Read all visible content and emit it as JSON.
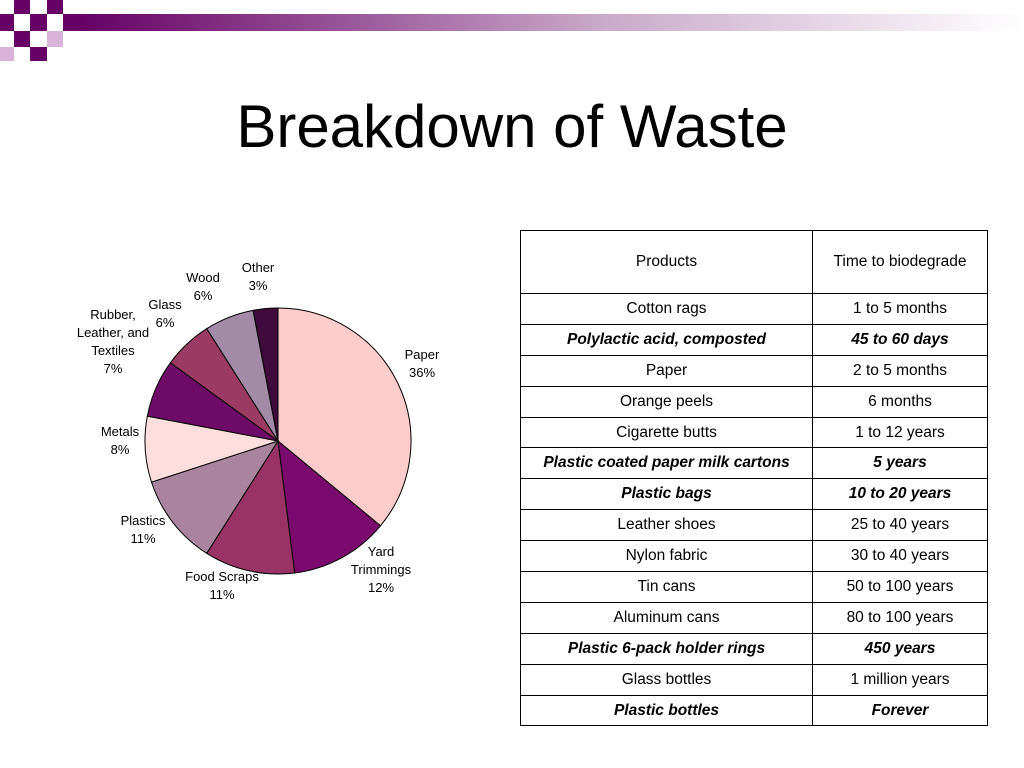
{
  "slide": {
    "title": "Breakdown of Waste"
  },
  "chart_data": {
    "type": "pie",
    "title": "",
    "slices": [
      {
        "label_lines": [
          "Paper",
          "36%"
        ],
        "value": 36,
        "color": "#ffcccc"
      },
      {
        "label_lines": [
          "Yard",
          "Trimmings",
          "12%"
        ],
        "value": 12,
        "color": "#7a0a6e"
      },
      {
        "label_lines": [
          "Food Scraps",
          "11%"
        ],
        "value": 11,
        "color": "#993366"
      },
      {
        "label_lines": [
          "Plastics",
          "11%"
        ],
        "value": 11,
        "color": "#a9849e"
      },
      {
        "label_lines": [
          "Metals",
          "8%"
        ],
        "value": 8,
        "color": "#ffdede"
      },
      {
        "label_lines": [
          "Rubber,",
          "Leather, and",
          "Textiles",
          "7%"
        ],
        "value": 7,
        "color": "#6e0a68"
      },
      {
        "label_lines": [
          "Glass",
          "6%"
        ],
        "value": 6,
        "color": "#9b3a62"
      },
      {
        "label_lines": [
          "Wood",
          "6%"
        ],
        "value": 6,
        "color": "#a38aa6"
      },
      {
        "label_lines": [
          "Other",
          "3%"
        ],
        "value": 3,
        "color": "#3f0a3c"
      }
    ]
  },
  "table": {
    "headers": [
      "Products",
      "Time to biodegrade"
    ],
    "rows": [
      {
        "product": "Cotton rags",
        "time": "1 to 5 months",
        "emphasis": false
      },
      {
        "product": "Polylactic acid, composted",
        "time": "45 to 60 days",
        "emphasis": true
      },
      {
        "product": "Paper",
        "time": "2 to 5 months",
        "emphasis": false
      },
      {
        "product": "Orange peels",
        "time": "6 months",
        "emphasis": false
      },
      {
        "product": "Cigarette butts",
        "time": "1 to 12 years",
        "emphasis": false
      },
      {
        "product": "Plastic coated paper milk cartons",
        "time": "5 years",
        "emphasis": true
      },
      {
        "product": "Plastic bags",
        "time": "10 to 20 years",
        "emphasis": true
      },
      {
        "product": "Leather shoes",
        "time": "25 to 40 years",
        "emphasis": false
      },
      {
        "product": "Nylon fabric",
        "time": "30 to 40 years",
        "emphasis": false
      },
      {
        "product": "Tin cans",
        "time": "50 to 100 years",
        "emphasis": false
      },
      {
        "product": "Aluminum cans",
        "time": "80 to 100 years",
        "emphasis": false
      },
      {
        "product": "Plastic 6-pack holder rings",
        "time": "450 years",
        "emphasis": true
      },
      {
        "product": "Glass bottles",
        "time": "1 million years",
        "emphasis": false
      },
      {
        "product": "Plastic bottles",
        "time": "Forever",
        "emphasis": true
      }
    ]
  },
  "theme": {
    "accent": "#660066",
    "accent_light": "#d9b3d9"
  }
}
